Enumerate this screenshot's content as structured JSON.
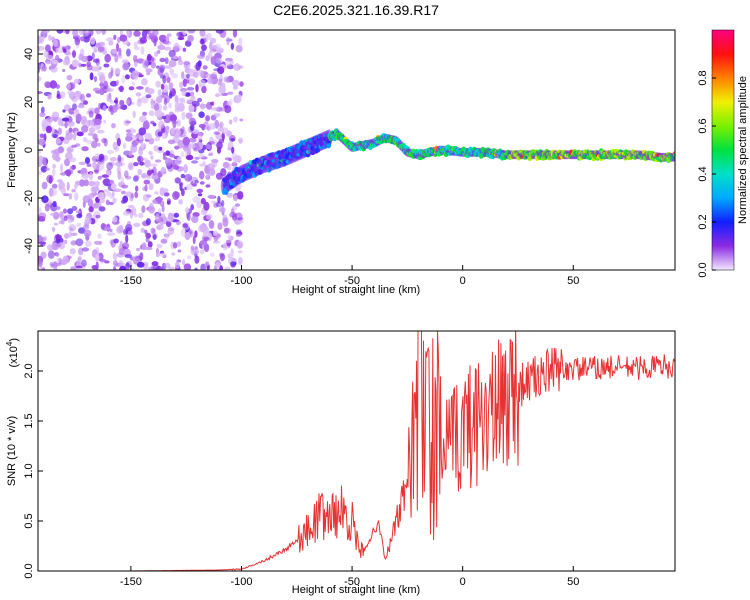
{
  "chart_data": [
    {
      "type": "heatmap",
      "title": "C2E6.2025.321.16.39.R17",
      "xlabel": "Height of straight line (km)",
      "ylabel": "Frequency (Hz)",
      "xlim": [
        -192,
        96
      ],
      "ylim": [
        -50,
        50
      ],
      "xticks": [
        -150,
        -100,
        -50,
        0,
        50
      ],
      "yticks": [
        -40,
        -20,
        0,
        20,
        40
      ],
      "noise_region_x": [
        -192,
        -108
      ],
      "signal_ridge": {
        "x": [
          -108,
          -100,
          -90,
          -80,
          -70,
          -60,
          -57,
          -50,
          -40,
          -35,
          -30,
          -25,
          -20,
          -15,
          -10,
          0,
          10,
          20,
          40,
          60,
          80,
          90,
          96
        ],
        "y": [
          -15,
          -10,
          -6,
          -3,
          1,
          5,
          7,
          1,
          3,
          5,
          4,
          -1,
          -2,
          -1,
          0,
          -1,
          -1,
          -2,
          -2,
          -2,
          -2,
          -3,
          -3
        ]
      },
      "colorbar": {
        "label": "Normalized spectral amplitude",
        "range": [
          0,
          1
        ],
        "ticks": [
          "0.0",
          "0.2",
          "0.4",
          "0.6",
          "0.8"
        ]
      }
    },
    {
      "type": "line",
      "xlabel": "Height of straight line (km)",
      "ylabel": "SNR (10 * v/v)",
      "y_multiplier_label": "(x10",
      "y_multiplier_exp": "4",
      "xlim": [
        -192,
        96
      ],
      "ylim": [
        0,
        2.4
      ],
      "xticks": [
        -150,
        -100,
        -50,
        0,
        50
      ],
      "yticks": [
        "0.0",
        "0.5",
        "1.0",
        "1.5",
        "2.0"
      ],
      "series": [
        {
          "name": "SNR",
          "color": "#e63232",
          "x": [
            -192,
            -150,
            -110,
            -100,
            -90,
            -80,
            -70,
            -65,
            -60,
            -55,
            -50,
            -47,
            -45,
            -40,
            -38,
            -35,
            -30,
            -27,
            -25,
            -22,
            -20,
            -19,
            -18,
            -15,
            -12,
            -10,
            -5,
            0,
            5,
            10,
            15,
            20,
            25,
            30,
            35,
            40,
            50,
            60,
            70,
            80,
            90,
            96
          ],
          "y": [
            0.0,
            0.0,
            0.01,
            0.02,
            0.1,
            0.22,
            0.4,
            0.55,
            0.55,
            0.6,
            0.5,
            0.2,
            0.2,
            0.4,
            0.5,
            0.1,
            0.5,
            0.7,
            1.0,
            1.2,
            1.5,
            2.3,
            1.6,
            1.3,
            1.4,
            1.2,
            1.25,
            1.4,
            1.5,
            1.6,
            1.55,
            1.75,
            1.85,
            1.9,
            1.95,
            2.0,
            2.02,
            2.03,
            2.04,
            2.03,
            2.05,
            2.04
          ]
        }
      ]
    }
  ]
}
